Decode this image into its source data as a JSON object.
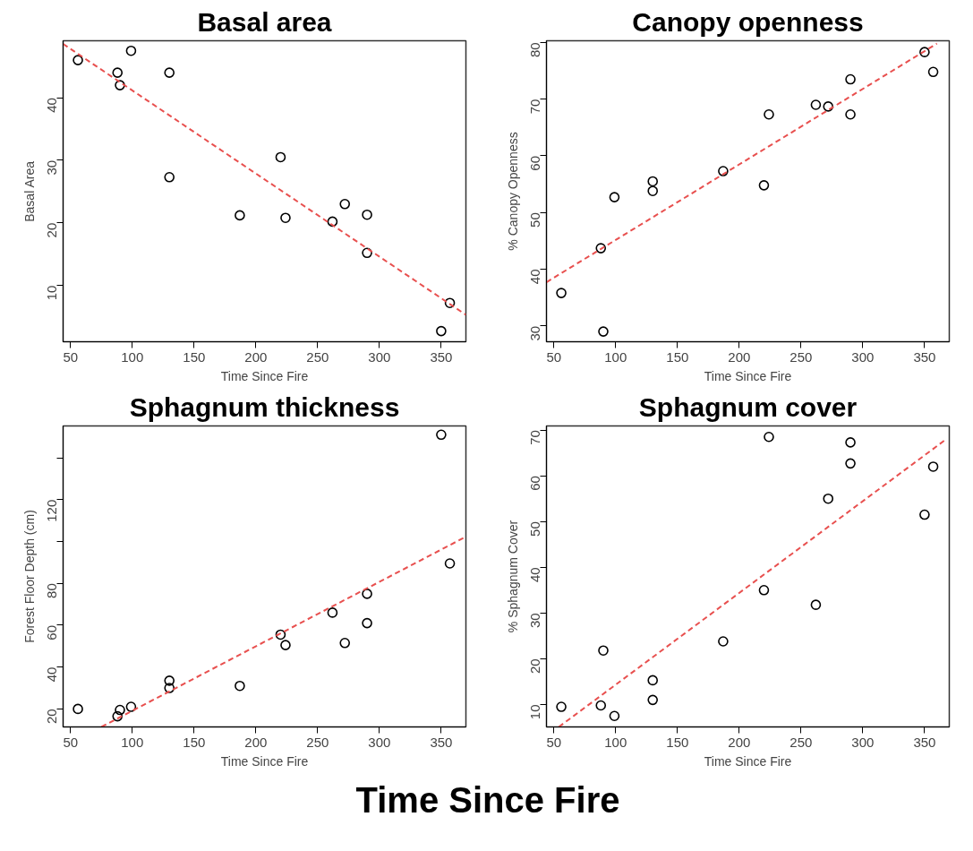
{
  "chart_data": [
    {
      "type": "scatter",
      "title": "Basal area",
      "xlabel": "Time Since Fire",
      "ylabel": "Basal Area",
      "xlim": [
        44,
        370
      ],
      "ylim": [
        1,
        49.1
      ],
      "xticks": [
        50,
        100,
        150,
        200,
        250,
        300,
        350
      ],
      "yticks": [
        10,
        20,
        30,
        40
      ],
      "series": [
        {
          "marker": "circle",
          "color": "#000000",
          "x": [
            56,
            88,
            90,
            99,
            130,
            130,
            187,
            220,
            224,
            262,
            272,
            290,
            290,
            350,
            357
          ],
          "values": [
            46,
            44,
            42,
            47.5,
            44,
            27.3,
            21.2,
            30.5,
            20.8,
            20.2,
            23,
            21.3,
            15.2,
            2.7,
            7.2
          ]
        },
        {
          "type": "line",
          "line_style": "dashed",
          "color": "#e8504f",
          "x": [
            44,
            370
          ],
          "values": [
            48.6,
            5.3
          ]
        }
      ]
    },
    {
      "type": "scatter",
      "title": "Canopy openness",
      "xlabel": "Time Since Fire",
      "ylabel": "% Canopy Openness",
      "xlim": [
        44,
        370
      ],
      "ylim": [
        27.2,
        80.3
      ],
      "xticks": [
        50,
        100,
        150,
        200,
        250,
        300,
        350
      ],
      "yticks": [
        30,
        40,
        50,
        60,
        70,
        80
      ],
      "series": [
        {
          "marker": "circle",
          "color": "#000000",
          "x": [
            56,
            88,
            90,
            99,
            130,
            130,
            187,
            220,
            224,
            262,
            272,
            290,
            290,
            350,
            357
          ],
          "values": [
            35.8,
            43.7,
            29,
            52.7,
            55.5,
            53.8,
            57.3,
            54.8,
            67.3,
            69,
            68.7,
            73.5,
            67.3,
            78.3,
            74.8
          ]
        },
        {
          "type": "line",
          "line_style": "dashed",
          "color": "#e8504f",
          "x": [
            44,
            360
          ],
          "values": [
            37.7,
            79.8
          ]
        }
      ]
    },
    {
      "type": "scatter",
      "title": "Sphagnum thickness",
      "xlabel": "Time Since Fire",
      "ylabel": "Forest Floor Depth (cm)",
      "xlim": [
        44,
        370
      ],
      "ylim": [
        11.4,
        155.2
      ],
      "xticks": [
        50,
        100,
        150,
        200,
        250,
        300,
        350
      ],
      "yticks": [
        20,
        40,
        60,
        80,
        {
          "value": 100,
          "label": null
        },
        120,
        {
          "value": 140,
          "label": null
        }
      ],
      "annotations": [
        "Time Since Fire"
      ],
      "series": [
        {
          "marker": "circle",
          "color": "#000000",
          "x": [
            56,
            88,
            90,
            99,
            130,
            130,
            187,
            220,
            224,
            262,
            272,
            290,
            290,
            350,
            357
          ],
          "values": [
            20,
            16.5,
            19.5,
            21,
            33.5,
            30,
            31,
            55.5,
            50.5,
            66,
            51.5,
            75,
            61,
            151,
            89.5
          ]
        },
        {
          "type": "line",
          "line_style": "dashed",
          "color": "#e8504f",
          "x": [
            75,
            370
          ],
          "values": [
            11.4,
            102.3
          ]
        }
      ]
    },
    {
      "type": "scatter",
      "title": "Sphagnum cover",
      "xlabel": "Time Since Fire",
      "ylabel": "% Sphagnum Cover",
      "xlim": [
        44,
        370
      ],
      "ylim": [
        5.1,
        70.9
      ],
      "xticks": [
        50,
        100,
        150,
        200,
        250,
        300,
        350
      ],
      "yticks": [
        10,
        20,
        30,
        40,
        50,
        60,
        70
      ],
      "series": [
        {
          "marker": "circle",
          "color": "#000000",
          "x": [
            56,
            88,
            90,
            99,
            130,
            130,
            187,
            220,
            224,
            262,
            272,
            290,
            290,
            350,
            357
          ],
          "values": [
            9.5,
            9.8,
            21.8,
            7.5,
            15.3,
            11,
            23.8,
            35,
            68.5,
            31.8,
            55,
            67.3,
            62.7,
            51.5,
            62
          ]
        },
        {
          "type": "line",
          "line_style": "dashed",
          "color": "#e8504f",
          "x": [
            54,
            368
          ],
          "values": [
            5.1,
            68.1
          ]
        }
      ]
    }
  ]
}
